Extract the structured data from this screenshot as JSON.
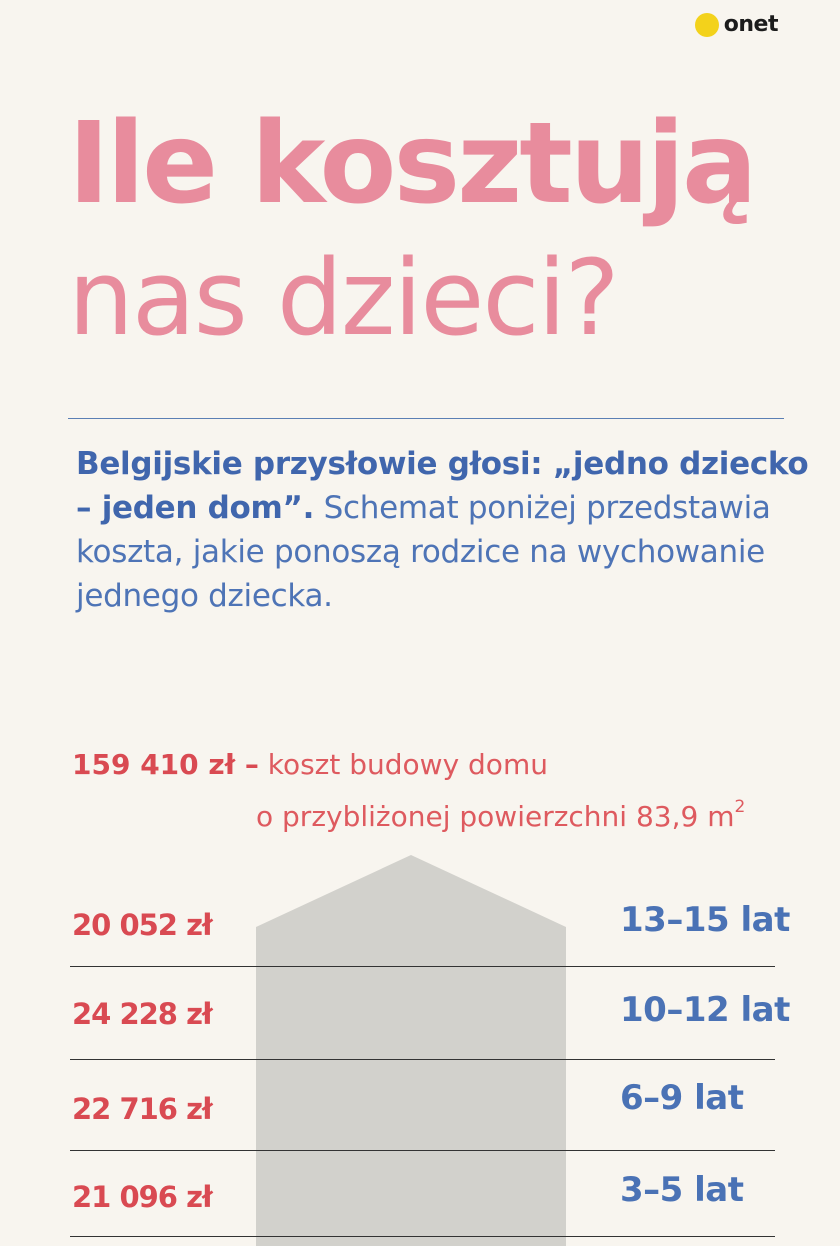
{
  "logo": {
    "text": "onet"
  },
  "title": {
    "line1": "Ile kosztują",
    "line2": "nas dzieci?"
  },
  "intro": {
    "bold": "Belgijskie przysłowie głosi: „jedno dziecko – jeden dom”.",
    "regular": " Schemat poniżej przedstawia koszta, jakie ponoszą rodzice na wychowanie jednego dziecka."
  },
  "house_cost": {
    "amount": "159 410 zł –",
    "line1": " koszt budowy domu",
    "line2": "o przybliżonej powierzchni 83,9 m",
    "unit_sup": "2"
  },
  "rows": [
    {
      "amount": "20 052 zł",
      "age": "13–15 lat"
    },
    {
      "amount": "24 228 zł",
      "age": "10–12 lat"
    },
    {
      "amount": "22 716 zł",
      "age": "6–9 lat"
    },
    {
      "amount": "21 096 zł",
      "age": "3–5 lat"
    }
  ],
  "colors": {
    "background": "#f8f5ef",
    "title_pink": "#e88c9d",
    "intro_blue": "#4e74b6",
    "amount_red": "#d94a52",
    "age_blue": "#4a72b5",
    "house_gray": "#d2d1cc",
    "logo_yellow": "#f3d21b"
  }
}
